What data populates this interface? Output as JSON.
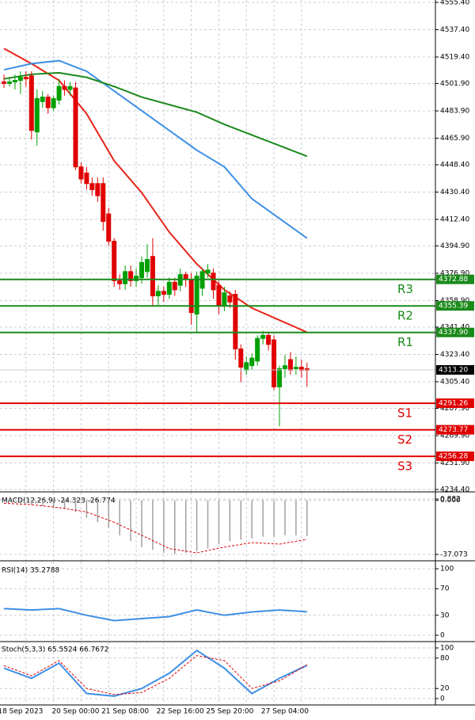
{
  "chart_data": [
    {
      "type": "candlestick",
      "categories": [
        null,
        null,
        null,
        "18 Sep 2023",
        null,
        null,
        null,
        null,
        null,
        null,
        null,
        null,
        null,
        "20 Sep 00:00",
        null,
        null,
        null,
        null,
        null,
        null,
        null,
        null,
        "21 Sep 08:00",
        null,
        null,
        null,
        null,
        null,
        null,
        null,
        null,
        null,
        "22 Sep 16:00",
        null,
        null,
        null,
        null,
        null,
        null,
        null,
        null,
        "25 Sep 20:00",
        null,
        null,
        null,
        null,
        null,
        null,
        null,
        null,
        null,
        "27 Sep 04:00",
        null,
        null,
        null,
        null
      ],
      "open": [
        4503,
        4502,
        4503,
        4504,
        4506,
        4507,
        4470,
        4490,
        4493,
        4486,
        4491,
        4500,
        4498,
        4499,
        4447,
        4443,
        4436,
        4436,
        4436,
        4416,
        4398,
        4372,
        4370,
        4378,
        4372,
        4374,
        4378,
        4388,
        4362,
        4365,
        4363,
        4371,
        4369,
        4376,
        4373,
        4350,
        4367,
        4377,
        4377,
        4369,
        4356,
        4362,
        4363,
        4327,
        4313,
        4316,
        4319,
        4334,
        4336,
        4333,
        4302,
        4314,
        4320,
        4314,
        4315,
        4314
      ],
      "high": [
        4508,
        4506,
        4508,
        4510,
        4510,
        4510,
        4498,
        4497,
        4495,
        4494,
        4505,
        4504,
        4503,
        4503,
        4450,
        4447,
        4440,
        4440,
        4440,
        4420,
        4400,
        4376,
        4382,
        4382,
        4380,
        4388,
        4396,
        4400,
        4369,
        4368,
        4374,
        4374,
        4380,
        4378,
        4377,
        4378,
        4380,
        4383,
        4380,
        4372,
        4368,
        4365,
        4366,
        4330,
        4322,
        4324,
        4336,
        4339,
        4338,
        4336,
        4316,
        4323,
        4325,
        4322,
        4320,
        4318
      ],
      "low": [
        4499,
        4500,
        4498,
        4495,
        4500,
        4465,
        4461,
        4486,
        4482,
        4484,
        4488,
        4494,
        4494,
        4445,
        4436,
        4432,
        4428,
        4424,
        4405,
        4395,
        4368,
        4366,
        4366,
        4368,
        4368,
        4370,
        4374,
        4355,
        4356,
        4358,
        4360,
        4362,
        4365,
        4368,
        4343,
        4338,
        4362,
        4374,
        4360,
        4350,
        4352,
        4354,
        4320,
        4305,
        4310,
        4313,
        4316,
        4330,
        4326,
        4300,
        4276,
        4308,
        4310,
        4310,
        4308,
        4302
      ],
      "close": [
        4502,
        4503,
        4504,
        4506,
        4505,
        4471,
        4492,
        4493,
        4486,
        4492,
        4500,
        4498,
        4500,
        4447,
        4439,
        4436,
        4432,
        4428,
        4411,
        4398,
        4372,
        4370,
        4378,
        4372,
        4375,
        4384,
        4386,
        4362,
        4365,
        4363,
        4371,
        4366,
        4376,
        4373,
        4351,
        4375,
        4378,
        4379,
        4366,
        4356,
        4364,
        4358,
        4327,
        4315,
        4318,
        4321,
        4334,
        4336,
        4330,
        4302,
        4314,
        4316,
        4313,
        4315,
        4313,
        4313
      ],
      "up_color": "#00a000",
      "down_color": "#e00000",
      "overlays": [
        {
          "color": "#e8241a",
          "x": [
            0,
            5,
            10,
            15,
            20,
            25,
            30,
            35,
            40,
            45,
            50,
            55
          ],
          "values": [
            4525,
            4515,
            4504,
            4482,
            4451,
            4430,
            4404,
            4383,
            4366,
            4354,
            4346,
            4338
          ]
        },
        {
          "color": "#3d8fe6",
          "x": [
            0,
            5,
            10,
            15,
            20,
            25,
            30,
            35,
            40,
            45,
            50,
            55
          ],
          "values": [
            4511,
            4515,
            4517,
            4510,
            4497,
            4484,
            4471,
            4458,
            4447,
            4426,
            4413,
            4400
          ]
        },
        {
          "color": "#1a8a1a",
          "x": [
            0,
            5,
            10,
            15,
            20,
            25,
            30,
            35,
            40,
            45,
            50,
            55
          ],
          "values": [
            4505,
            4508,
            4509,
            4506,
            4500,
            4493,
            4488,
            4483,
            4475,
            4468,
            4461,
            4454
          ]
        }
      ],
      "levels": [
        {
          "name": "R3",
          "value": 4372.88,
          "color": "#1a8a1a"
        },
        {
          "name": "R2",
          "value": 4355.39,
          "color": "#1a8a1a"
        },
        {
          "name": "R1",
          "value": 4337.9,
          "value_label": "4337.90",
          "color": "#1a8a1a"
        },
        {
          "name": "S1",
          "value": 4291.26,
          "color": "#e00000"
        },
        {
          "name": "S2",
          "value": 4273.77,
          "color": "#e00000"
        },
        {
          "name": "S3",
          "value": 4256.28,
          "color": "#e00000"
        }
      ],
      "last": {
        "value": 4313.2,
        "label": "4313.20"
      },
      "ylim": [
        4234.4,
        4555.4
      ],
      "yticks": [
        {
          "value": 4555.4,
          "label": "4555.40"
        },
        {
          "value": 4537.4,
          "label": "4537.40"
        },
        {
          "value": 4519.4,
          "label": "4519.40"
        },
        {
          "value": 4501.9,
          "label": "4501.90"
        },
        {
          "value": 4483.9,
          "label": "4483.90"
        },
        {
          "value": 4465.9,
          "label": "4465.90"
        },
        {
          "value": 4448.4,
          "label": "4448.40"
        },
        {
          "value": 4430.4,
          "label": "4430.40"
        },
        {
          "value": 4412.4,
          "label": "4412.40"
        },
        {
          "value": 4394.9,
          "label": "4394.90"
        },
        {
          "value": 4376.9,
          "label": "4376.90"
        },
        {
          "value": 4358.9,
          "label": "4358.90"
        },
        {
          "value": 4341.4,
          "label": "4341.40"
        },
        {
          "value": 4323.4,
          "label": "4323.40"
        },
        {
          "value": 4305.4,
          "label": "4305.40"
        },
        {
          "value": 4287.9,
          "label": "4287.90"
        },
        {
          "value": 4269.9,
          "label": "4269.90"
        },
        {
          "value": 4251.9,
          "label": "4251.90"
        },
        {
          "value": 4234.4,
          "label": "4234.40"
        }
      ]
    },
    {
      "type": "macd",
      "title": "MACD(12,26,9) -24.323 -26.774",
      "hist_color": "#a0a0a0",
      "signal_color": "#e00000",
      "hist_x": [
        1,
        3,
        5,
        7,
        9,
        11,
        13,
        15,
        17,
        19,
        21,
        23,
        25,
        27,
        29,
        31,
        33,
        35,
        37,
        39,
        41,
        43,
        45,
        47,
        49,
        51,
        53,
        55
      ],
      "hist": [
        -1,
        -2,
        -3,
        -4,
        -5,
        -6,
        -8,
        -12,
        -15,
        -19,
        -24,
        -28,
        -32,
        -34,
        -36,
        -37,
        -36,
        -35,
        -33,
        -30,
        -28,
        -27,
        -26,
        -25,
        -25,
        -24,
        -24,
        -24.323
      ],
      "signal_x": [
        0,
        5,
        10,
        15,
        20,
        25,
        30,
        35,
        40,
        45,
        50,
        55
      ],
      "signal": [
        -2,
        -3,
        -5,
        -8,
        -15,
        -24,
        -33,
        -36,
        -32,
        -29,
        -30,
        -26.774
      ],
      "ylim": [
        -37.073,
        0.882
      ],
      "yticks": [
        0.882,
        {
          "value": 0,
          "label": "0.000"
        },
        -37.073
      ]
    },
    {
      "type": "line",
      "title": "RSI(14) 35.2788",
      "series": [
        {
          "color": "#3d8fe6",
          "x": [
            0,
            5,
            10,
            15,
            20,
            25,
            30,
            35,
            40,
            45,
            50,
            55
          ],
          "values": [
            40,
            38,
            40,
            30,
            22,
            25,
            28,
            38,
            30,
            35,
            38,
            35.2788
          ]
        }
      ],
      "ylim": [
        0,
        100
      ],
      "yticks": [
        0,
        30,
        70,
        100
      ]
    },
    {
      "type": "line",
      "title": "Stoch(5,3,3) 65.5524 66.7672",
      "series": [
        {
          "color": "#3d8fe6",
          "x": [
            0,
            5,
            10,
            15,
            20,
            25,
            30,
            35,
            40,
            45,
            50,
            55
          ],
          "values": [
            60,
            40,
            70,
            10,
            5,
            20,
            50,
            95,
            60,
            10,
            40,
            65.5524
          ]
        },
        {
          "color": "#e00000",
          "dashed": true,
          "x": [
            0,
            5,
            10,
            15,
            20,
            25,
            30,
            35,
            40,
            45,
            50,
            55
          ],
          "values": [
            65,
            45,
            75,
            20,
            8,
            12,
            40,
            85,
            75,
            20,
            35,
            66.7672
          ]
        }
      ],
      "ylim": [
        0,
        100
      ],
      "yticks": [
        0,
        20,
        80,
        100
      ]
    }
  ]
}
